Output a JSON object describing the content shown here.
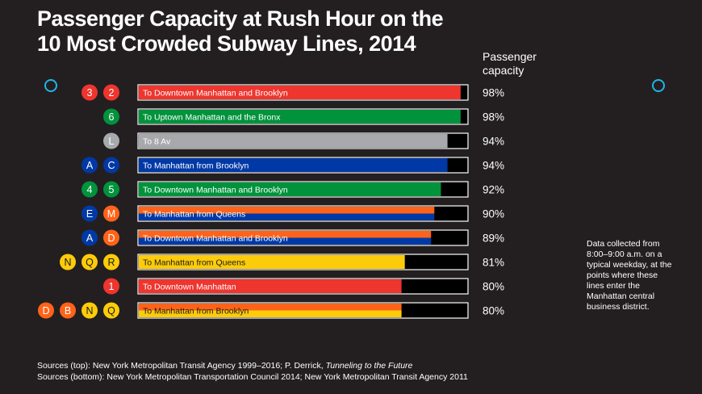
{
  "title_lines": [
    "Passenger Capacity at Rush Hour on the",
    "10 Most Crowded Subway Lines, 2014"
  ],
  "capacity_header": "Passenger capacity",
  "note": "Data collected from 8:00–9:00 a.m. on a typical weekday, at the points where these lines enter the Manhattan central business district.",
  "sources": {
    "top_prefix": "Sources (top): New York Metropolitan Transit Agency 1999–2016; P. Derrick, ",
    "top_italic": "Tunneling to the Future",
    "bottom": "Sources (bottom): New York Metropolitan Transportation Council 2014; New York Metropolitan Transit Agency 2011"
  },
  "colors": {
    "background": "#231f20",
    "red": "#ee352e",
    "green": "#00933c",
    "gray": "#a7a9ac",
    "blue": "#0039a6",
    "orange": "#ff6319",
    "yellow": "#fccc0a",
    "ring": "#1fb5e8"
  },
  "chart_data": {
    "type": "bar",
    "orientation": "horizontal",
    "value_unit": "%",
    "xlim": [
      0,
      100
    ],
    "categories": [
      "To Downtown Manhattan and Brooklyn",
      "To Uptown Manhattan and the Bronx",
      "To 8 Av",
      "To Manhattan from Brooklyn",
      "To Downtown Manhattan and Brooklyn",
      "To Manhattan from Queens",
      "To Downtown Manhattan and Brooklyn",
      "To Manhattan from Queens",
      "To Downtown Manhattan",
      "To Manhattan from Brooklyn"
    ],
    "values": [
      98,
      98,
      94,
      94,
      92,
      90,
      89,
      81,
      80,
      80
    ],
    "value_labels": [
      "98%",
      "98%",
      "94%",
      "94%",
      "92%",
      "90%",
      "89%",
      "81%",
      "80%",
      "80%"
    ],
    "lines": [
      {
        "badges": [
          "3",
          "2"
        ],
        "badge_colors": [
          "#ee352e",
          "#ee352e"
        ],
        "bar_colors": [
          "#ee352e"
        ]
      },
      {
        "badges": [
          "6"
        ],
        "badge_colors": [
          "#00933c"
        ],
        "bar_colors": [
          "#00933c"
        ]
      },
      {
        "badges": [
          "L"
        ],
        "badge_colors": [
          "#a7a9ac"
        ],
        "bar_colors": [
          "#a7a9ac"
        ]
      },
      {
        "badges": [
          "A",
          "C"
        ],
        "badge_colors": [
          "#0039a6",
          "#0039a6"
        ],
        "bar_colors": [
          "#0039a6"
        ]
      },
      {
        "badges": [
          "4",
          "5"
        ],
        "badge_colors": [
          "#00933c",
          "#00933c"
        ],
        "bar_colors": [
          "#00933c"
        ]
      },
      {
        "badges": [
          "E",
          "M"
        ],
        "badge_colors": [
          "#0039a6",
          "#ff6319"
        ],
        "bar_colors": [
          "#ff6319",
          "#0039a6"
        ]
      },
      {
        "badges": [
          "A",
          "D"
        ],
        "badge_colors": [
          "#0039a6",
          "#ff6319"
        ],
        "bar_colors": [
          "#ff6319",
          "#0039a6"
        ]
      },
      {
        "badges": [
          "N",
          "Q",
          "R"
        ],
        "badge_colors": [
          "#fccc0a",
          "#fccc0a",
          "#fccc0a"
        ],
        "bar_colors": [
          "#fccc0a"
        ]
      },
      {
        "badges": [
          "1"
        ],
        "badge_colors": [
          "#ee352e"
        ],
        "bar_colors": [
          "#ee352e"
        ]
      },
      {
        "badges": [
          "D",
          "B",
          "N",
          "Q"
        ],
        "badge_colors": [
          "#ff6319",
          "#ff6319",
          "#fccc0a",
          "#fccc0a"
        ],
        "bar_colors": [
          "#ff6319",
          "#fccc0a"
        ]
      }
    ]
  }
}
